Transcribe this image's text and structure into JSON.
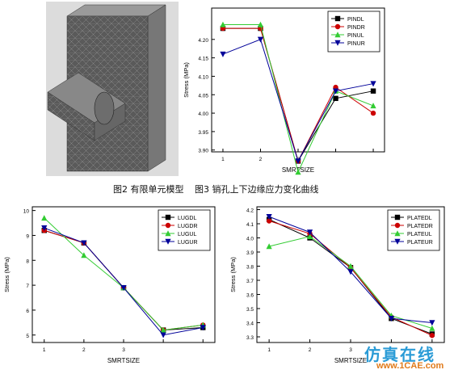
{
  "captions": {
    "fig2": "图2 有限单元模型",
    "fig3": "图3 销孔上下边缘应力变化曲线"
  },
  "watermark": {
    "main": "仿真在线",
    "url": "www.1CAE.com"
  },
  "chart_data": [
    {
      "id": "pin",
      "type": "line",
      "xlabel": "SMRTSIZE",
      "ylabel": "Stress (MPa)",
      "xticks": [
        1,
        2,
        3
      ],
      "yticks": [
        "3.90",
        "3.95",
        "4.00",
        "4.05",
        "4.10",
        "4.15",
        "4.20"
      ],
      "xlim": [
        0.7,
        5.3
      ],
      "ylim": [
        3.895,
        4.285
      ],
      "legend_position": "top-right",
      "x": [
        1,
        2,
        3,
        4,
        5
      ],
      "series": [
        {
          "name": "PINDL",
          "color": "#000000",
          "marker": "square",
          "values": [
            4.23,
            4.23,
            3.87,
            4.04,
            4.06
          ]
        },
        {
          "name": "PINDR",
          "color": "#cc0000",
          "marker": "circle",
          "values": [
            4.23,
            4.23,
            3.87,
            4.07,
            4.0
          ]
        },
        {
          "name": "PINUL",
          "color": "#33cc33",
          "marker": "triangle-up",
          "values": [
            4.24,
            4.24,
            3.84,
            4.06,
            4.02
          ]
        },
        {
          "name": "PINUR",
          "color": "#000099",
          "marker": "triangle-down",
          "values": [
            4.16,
            4.2,
            3.87,
            4.06,
            4.08
          ]
        }
      ]
    },
    {
      "id": "lug",
      "type": "line",
      "xlabel": "SMRTSIZE",
      "ylabel": "Stress (MPa)",
      "xticks": [
        1,
        2,
        3
      ],
      "yticks": [
        "5",
        "6",
        "7",
        "8",
        "9",
        "10"
      ],
      "xlim": [
        0.7,
        5.3
      ],
      "ylim": [
        4.7,
        10.15
      ],
      "legend_position": "top-right",
      "x": [
        1,
        2,
        3,
        4,
        5
      ],
      "series": [
        {
          "name": "LUGDL",
          "color": "#000000",
          "marker": "square",
          "values": [
            9.2,
            8.7,
            6.9,
            5.2,
            5.3
          ]
        },
        {
          "name": "LUGDR",
          "color": "#cc0000",
          "marker": "circle",
          "values": [
            9.2,
            8.7,
            6.9,
            5.2,
            5.4
          ]
        },
        {
          "name": "LUGUL",
          "color": "#33cc33",
          "marker": "triangle-up",
          "values": [
            9.7,
            8.2,
            6.9,
            5.2,
            5.4
          ]
        },
        {
          "name": "LUGUR",
          "color": "#000099",
          "marker": "triangle-down",
          "values": [
            9.3,
            8.7,
            6.9,
            5.0,
            5.3
          ]
        }
      ]
    },
    {
      "id": "plate",
      "type": "line",
      "xlabel": "SMRTSIZE",
      "ylabel": "Stress (MPa)",
      "xticks": [
        1,
        2,
        3
      ],
      "yticks": [
        "3.3",
        "3.4",
        "3.5",
        "3.6",
        "3.7",
        "3.8",
        "3.9",
        "4.0",
        "4.1",
        "4.2"
      ],
      "xlim": [
        0.7,
        5.3
      ],
      "ylim": [
        3.26,
        4.22
      ],
      "legend_position": "top-right",
      "x": [
        1,
        2,
        3,
        4,
        5
      ],
      "series": [
        {
          "name": "PLATEDL",
          "color": "#000000",
          "marker": "square",
          "values": [
            4.13,
            4.0,
            3.79,
            3.43,
            3.32
          ]
        },
        {
          "name": "PLATEDR",
          "color": "#cc0000",
          "marker": "circle",
          "values": [
            4.12,
            4.03,
            3.79,
            3.44,
            3.31
          ]
        },
        {
          "name": "PLATEUL",
          "color": "#33cc33",
          "marker": "triangle-up",
          "values": [
            3.94,
            4.01,
            3.8,
            3.45,
            3.36
          ]
        },
        {
          "name": "PLATEUR",
          "color": "#000099",
          "marker": "triangle-down",
          "values": [
            4.15,
            4.04,
            3.76,
            3.43,
            3.4
          ]
        }
      ]
    }
  ]
}
